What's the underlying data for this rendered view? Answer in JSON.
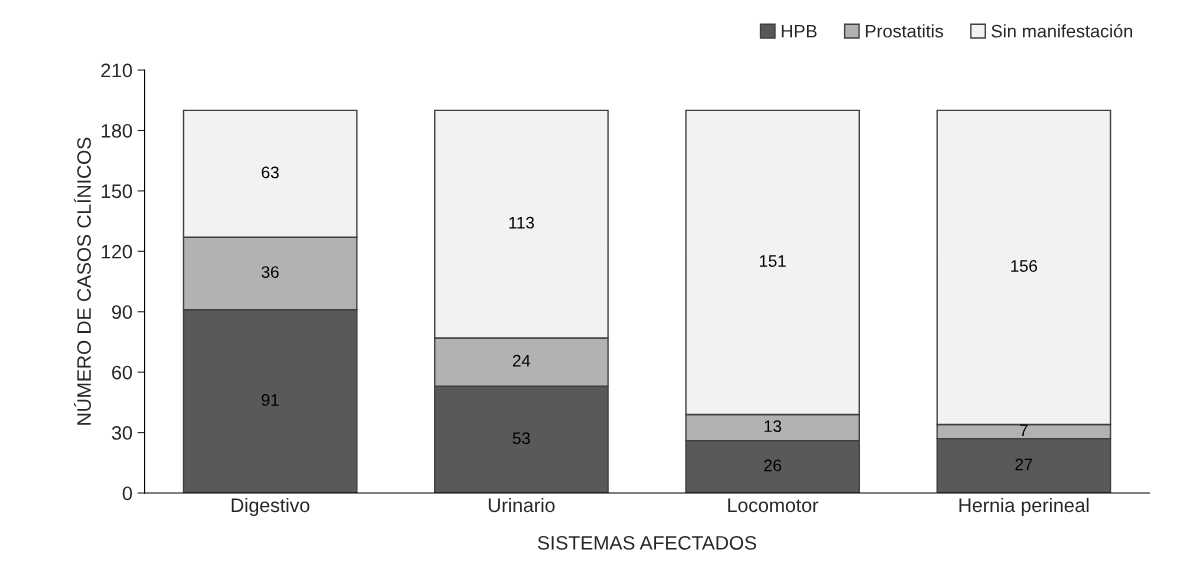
{
  "chart_data": {
    "type": "bar",
    "stacked": true,
    "xlabel": "SISTEMAS AFECTADOS",
    "ylabel": "NÚMERO DE CASOS CLÍNICOS",
    "categories": [
      "Digestivo",
      "Urinario",
      "Locomotor",
      "Hernia perineal"
    ],
    "series": [
      {
        "name": "HPB",
        "color": "#595959",
        "values": [
          91,
          53,
          26,
          27
        ]
      },
      {
        "name": "Prostatitis",
        "color": "#b2b2b2",
        "values": [
          36,
          24,
          13,
          7
        ]
      },
      {
        "name": "Sin manifestación",
        "color": "#f2f2f2",
        "values": [
          63,
          113,
          151,
          156
        ]
      }
    ],
    "ylim": [
      0,
      210
    ],
    "yticks": [
      0,
      30,
      60,
      90,
      120,
      150,
      180,
      210
    ],
    "data_labels": true,
    "grid": false,
    "legend": "top right"
  }
}
